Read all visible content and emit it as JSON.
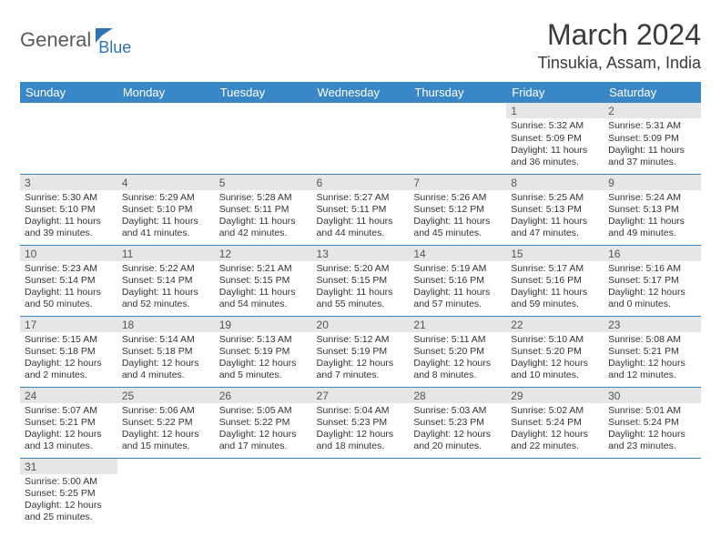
{
  "brand": {
    "part1": "General",
    "part2": "Blue"
  },
  "title": "March 2024",
  "location": "Tinsukia, Assam, India",
  "colors": {
    "header_bg": "#3a87c8",
    "header_text": "#ffffff",
    "daynum_bg": "#e6e6e6",
    "row_divider": "#3a87c8",
    "brand_gray": "#5a5a5a",
    "brand_blue": "#2e74b5"
  },
  "weekdays": [
    "Sunday",
    "Monday",
    "Tuesday",
    "Wednesday",
    "Thursday",
    "Friday",
    "Saturday"
  ],
  "leading_blanks": 5,
  "days": [
    {
      "n": "1",
      "sr": "5:32 AM",
      "ss": "5:09 PM",
      "dl": "11 hours and 36 minutes."
    },
    {
      "n": "2",
      "sr": "5:31 AM",
      "ss": "5:09 PM",
      "dl": "11 hours and 37 minutes."
    },
    {
      "n": "3",
      "sr": "5:30 AM",
      "ss": "5:10 PM",
      "dl": "11 hours and 39 minutes."
    },
    {
      "n": "4",
      "sr": "5:29 AM",
      "ss": "5:10 PM",
      "dl": "11 hours and 41 minutes."
    },
    {
      "n": "5",
      "sr": "5:28 AM",
      "ss": "5:11 PM",
      "dl": "11 hours and 42 minutes."
    },
    {
      "n": "6",
      "sr": "5:27 AM",
      "ss": "5:11 PM",
      "dl": "11 hours and 44 minutes."
    },
    {
      "n": "7",
      "sr": "5:26 AM",
      "ss": "5:12 PM",
      "dl": "11 hours and 45 minutes."
    },
    {
      "n": "8",
      "sr": "5:25 AM",
      "ss": "5:13 PM",
      "dl": "11 hours and 47 minutes."
    },
    {
      "n": "9",
      "sr": "5:24 AM",
      "ss": "5:13 PM",
      "dl": "11 hours and 49 minutes."
    },
    {
      "n": "10",
      "sr": "5:23 AM",
      "ss": "5:14 PM",
      "dl": "11 hours and 50 minutes."
    },
    {
      "n": "11",
      "sr": "5:22 AM",
      "ss": "5:14 PM",
      "dl": "11 hours and 52 minutes."
    },
    {
      "n": "12",
      "sr": "5:21 AM",
      "ss": "5:15 PM",
      "dl": "11 hours and 54 minutes."
    },
    {
      "n": "13",
      "sr": "5:20 AM",
      "ss": "5:15 PM",
      "dl": "11 hours and 55 minutes."
    },
    {
      "n": "14",
      "sr": "5:19 AM",
      "ss": "5:16 PM",
      "dl": "11 hours and 57 minutes."
    },
    {
      "n": "15",
      "sr": "5:17 AM",
      "ss": "5:16 PM",
      "dl": "11 hours and 59 minutes."
    },
    {
      "n": "16",
      "sr": "5:16 AM",
      "ss": "5:17 PM",
      "dl": "12 hours and 0 minutes."
    },
    {
      "n": "17",
      "sr": "5:15 AM",
      "ss": "5:18 PM",
      "dl": "12 hours and 2 minutes."
    },
    {
      "n": "18",
      "sr": "5:14 AM",
      "ss": "5:18 PM",
      "dl": "12 hours and 4 minutes."
    },
    {
      "n": "19",
      "sr": "5:13 AM",
      "ss": "5:19 PM",
      "dl": "12 hours and 5 minutes."
    },
    {
      "n": "20",
      "sr": "5:12 AM",
      "ss": "5:19 PM",
      "dl": "12 hours and 7 minutes."
    },
    {
      "n": "21",
      "sr": "5:11 AM",
      "ss": "5:20 PM",
      "dl": "12 hours and 8 minutes."
    },
    {
      "n": "22",
      "sr": "5:10 AM",
      "ss": "5:20 PM",
      "dl": "12 hours and 10 minutes."
    },
    {
      "n": "23",
      "sr": "5:08 AM",
      "ss": "5:21 PM",
      "dl": "12 hours and 12 minutes."
    },
    {
      "n": "24",
      "sr": "5:07 AM",
      "ss": "5:21 PM",
      "dl": "12 hours and 13 minutes."
    },
    {
      "n": "25",
      "sr": "5:06 AM",
      "ss": "5:22 PM",
      "dl": "12 hours and 15 minutes."
    },
    {
      "n": "26",
      "sr": "5:05 AM",
      "ss": "5:22 PM",
      "dl": "12 hours and 17 minutes."
    },
    {
      "n": "27",
      "sr": "5:04 AM",
      "ss": "5:23 PM",
      "dl": "12 hours and 18 minutes."
    },
    {
      "n": "28",
      "sr": "5:03 AM",
      "ss": "5:23 PM",
      "dl": "12 hours and 20 minutes."
    },
    {
      "n": "29",
      "sr": "5:02 AM",
      "ss": "5:24 PM",
      "dl": "12 hours and 22 minutes."
    },
    {
      "n": "30",
      "sr": "5:01 AM",
      "ss": "5:24 PM",
      "dl": "12 hours and 23 minutes."
    },
    {
      "n": "31",
      "sr": "5:00 AM",
      "ss": "5:25 PM",
      "dl": "12 hours and 25 minutes."
    }
  ],
  "labels": {
    "sunrise": "Sunrise:",
    "sunset": "Sunset:",
    "daylight": "Daylight:"
  }
}
